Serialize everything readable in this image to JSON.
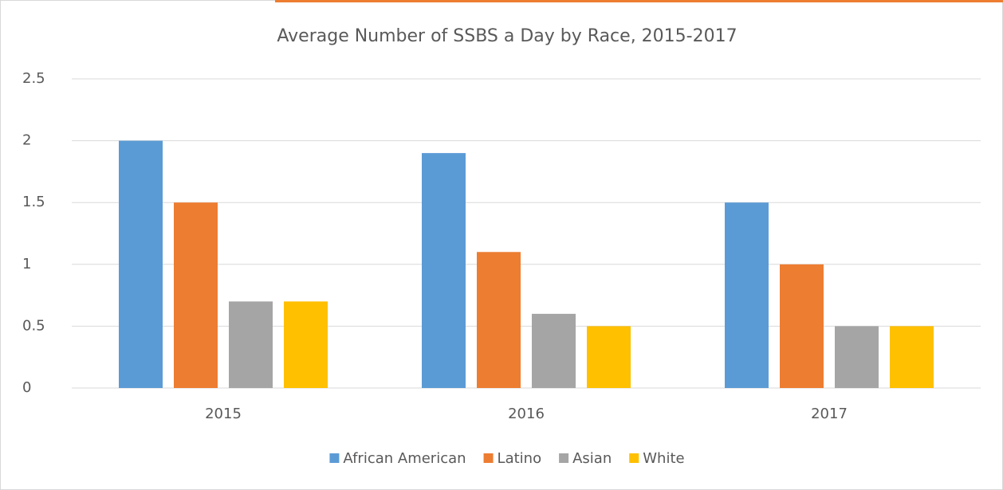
{
  "chart_data": {
    "type": "bar",
    "title": "Average Number of SSBS a Day  by Race, 2015-2017",
    "categories": [
      "2015",
      "2016",
      "2017"
    ],
    "series": [
      {
        "name": "African American",
        "color": "#5b9bd5",
        "values": [
          2,
          1.9,
          1.5
        ]
      },
      {
        "name": "Latino",
        "color": "#ed7d31",
        "values": [
          1.5,
          1.1,
          1.0
        ]
      },
      {
        "name": "Asian",
        "color": "#a5a5a5",
        "values": [
          0.7,
          0.6,
          0.5
        ]
      },
      {
        "name": "White",
        "color": "#ffc000",
        "values": [
          0.7,
          0.5,
          0.5
        ]
      }
    ],
    "ylim": [
      0,
      2.5
    ],
    "yticks": [
      0,
      0.5,
      1,
      1.5,
      2,
      2.5
    ],
    "grid": true,
    "legend": "bottom"
  }
}
